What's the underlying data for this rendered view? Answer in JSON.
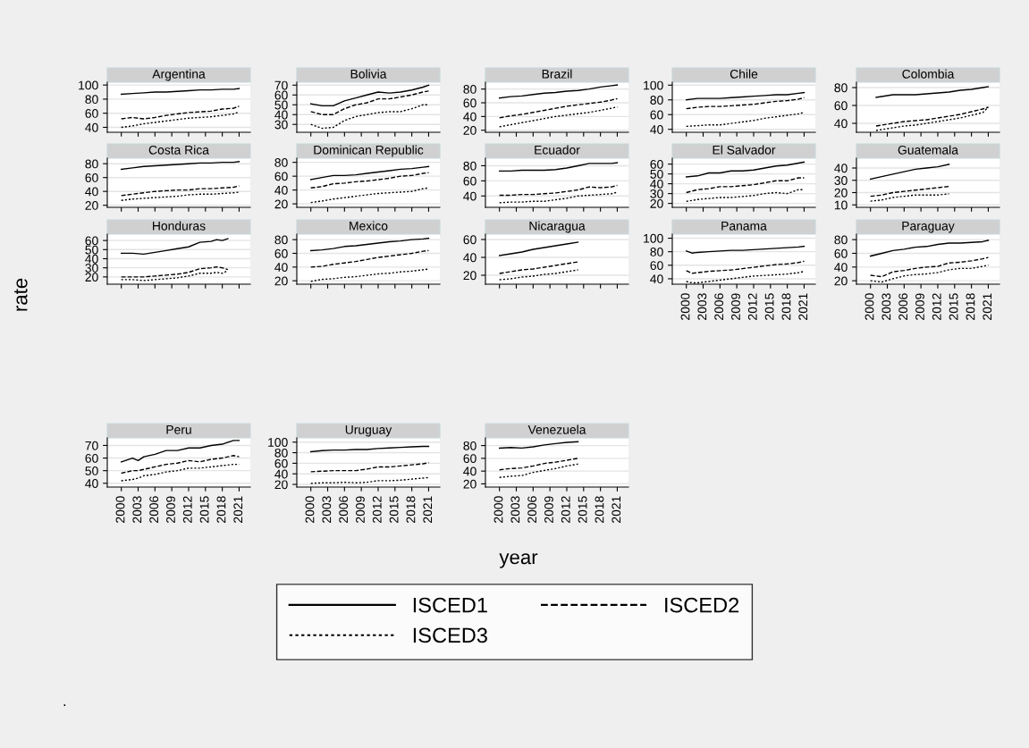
{
  "chart_data": [
    {
      "type": "line",
      "title": "Argentina",
      "grid": "y",
      "tick_labels": "y",
      "xlim": [
        1997.5,
        2023
      ],
      "xticks": [
        2000,
        2003,
        2006,
        2009,
        2012,
        2015,
        2018,
        2021
      ],
      "ylim": [
        33,
        104
      ],
      "yticks": [
        40,
        60,
        80,
        100
      ],
      "x": [
        2000,
        2002,
        2004,
        2006,
        2008,
        2010,
        2012,
        2014,
        2016,
        2018,
        2020,
        2021
      ],
      "series": [
        {
          "color": "#000000",
          "line_style": "solid",
          "values": [
            87,
            88,
            89,
            90,
            90,
            91,
            92,
            93,
            93,
            94,
            94,
            95
          ]
        },
        {
          "color": "#000000",
          "line_style": "dashed",
          "values": [
            52,
            54,
            52,
            54,
            57,
            59,
            61,
            62,
            63,
            66,
            67,
            70
          ]
        },
        {
          "color": "#000000",
          "line_style": "dotted",
          "values": [
            40,
            42,
            45,
            47,
            49,
            51,
            53,
            54,
            55,
            57,
            59,
            62
          ]
        }
      ]
    },
    {
      "type": "line",
      "title": "Bolivia",
      "grid": "y",
      "tick_labels": "y",
      "xlim": [
        1997.5,
        2023
      ],
      "xticks": [
        2000,
        2003,
        2006,
        2009,
        2012,
        2015,
        2018,
        2021
      ],
      "ylim": [
        22,
        73
      ],
      "yticks": [
        30,
        40,
        50,
        60,
        70
      ],
      "x": [
        2000,
        2002,
        2004,
        2006,
        2008,
        2010,
        2012,
        2014,
        2016,
        2018,
        2020,
        2021
      ],
      "series": [
        {
          "color": "#000000",
          "line_style": "solid",
          "values": [
            51,
            49,
            49,
            54,
            57,
            60,
            63,
            62,
            63,
            65,
            68,
            70
          ]
        },
        {
          "color": "#000000",
          "line_style": "dashed",
          "values": [
            43,
            40,
            40,
            46,
            50,
            52,
            56,
            56,
            58,
            60,
            63,
            64
          ]
        },
        {
          "color": "#000000",
          "line_style": "dotted",
          "values": [
            30,
            26,
            27,
            34,
            38,
            40,
            42,
            43,
            43,
            46,
            50,
            50
          ]
        }
      ]
    },
    {
      "type": "line",
      "title": "Brazil",
      "grid": "y",
      "tick_labels": "y",
      "xlim": [
        1997.5,
        2023
      ],
      "xticks": [
        2000,
        2003,
        2006,
        2009,
        2012,
        2015,
        2018,
        2021
      ],
      "ylim": [
        17,
        90
      ],
      "yticks": [
        20,
        40,
        60,
        80
      ],
      "x": [
        2000,
        2002,
        2004,
        2006,
        2008,
        2010,
        2012,
        2014,
        2016,
        2018,
        2020,
        2021
      ],
      "series": [
        {
          "color": "#000000",
          "line_style": "solid",
          "values": [
            67,
            69,
            70,
            72,
            74,
            75,
            77,
            78,
            80,
            83,
            85,
            86
          ]
        },
        {
          "color": "#000000",
          "line_style": "dashed",
          "values": [
            38,
            41,
            43,
            46,
            49,
            52,
            55,
            57,
            59,
            61,
            64,
            66
          ]
        },
        {
          "color": "#000000",
          "line_style": "dotted",
          "values": [
            25,
            28,
            31,
            34,
            37,
            40,
            42,
            44,
            46,
            49,
            52,
            54
          ]
        }
      ]
    },
    {
      "type": "line",
      "title": "Chile",
      "grid": "y",
      "tick_labels": "y",
      "xlim": [
        1997.5,
        2023
      ],
      "xticks": [
        2000,
        2003,
        2006,
        2009,
        2012,
        2015,
        2018,
        2021
      ],
      "ylim": [
        36,
        104
      ],
      "yticks": [
        40,
        60,
        80,
        100
      ],
      "x": [
        2000,
        2002,
        2004,
        2006,
        2008,
        2010,
        2012,
        2014,
        2016,
        2018,
        2020,
        2021
      ],
      "series": [
        {
          "color": "#000000",
          "line_style": "solid",
          "values": [
            80,
            82,
            82,
            82,
            83,
            84,
            85,
            86,
            87,
            87,
            89,
            90
          ]
        },
        {
          "color": "#000000",
          "line_style": "dashed",
          "values": [
            68,
            70,
            71,
            71,
            72,
            73,
            74,
            76,
            78,
            79,
            81,
            83
          ]
        },
        {
          "color": "#000000",
          "line_style": "dotted",
          "values": [
            44,
            45,
            46,
            46,
            48,
            50,
            52,
            55,
            57,
            59,
            61,
            63
          ]
        }
      ]
    },
    {
      "type": "line",
      "title": "Colombia",
      "grid": "y",
      "tick_labels": "y",
      "xlim": [
        1997.5,
        2023
      ],
      "xticks": [
        2000,
        2003,
        2006,
        2009,
        2012,
        2015,
        2018,
        2021
      ],
      "ylim": [
        30,
        86
      ],
      "yticks": [
        40,
        60,
        80
      ],
      "x": [
        2001,
        2002,
        2004,
        2006,
        2008,
        2010,
        2012,
        2014,
        2016,
        2018,
        2020,
        2021
      ],
      "series": [
        {
          "color": "#000000",
          "line_style": "solid",
          "values": [
            69,
            70,
            72,
            72,
            72,
            73,
            74,
            75,
            77,
            78,
            80,
            81
          ]
        },
        {
          "color": "#000000",
          "line_style": "dashed",
          "values": [
            37,
            38,
            40,
            42,
            43,
            44,
            46,
            48,
            50,
            53,
            56,
            58
          ]
        },
        {
          "color": "#000000",
          "line_style": "dotted",
          "values": [
            32,
            33,
            35,
            37,
            38,
            40,
            42,
            44,
            46,
            49,
            52,
            58
          ]
        }
      ]
    },
    {
      "type": "line",
      "title": "Costa Rica",
      "grid": "y",
      "tick_labels": "y",
      "xlim": [
        1997.5,
        2023
      ],
      "xticks": [
        2000,
        2003,
        2006,
        2009,
        2012,
        2015,
        2018,
        2021
      ],
      "ylim": [
        17,
        88
      ],
      "yticks": [
        20,
        40,
        60,
        80
      ],
      "x": [
        2000,
        2002,
        2004,
        2006,
        2008,
        2010,
        2012,
        2014,
        2016,
        2018,
        2020,
        2021
      ],
      "series": [
        {
          "color": "#000000",
          "line_style": "solid",
          "values": [
            72,
            74,
            76,
            77,
            78,
            79,
            80,
            81,
            81,
            82,
            82,
            83
          ]
        },
        {
          "color": "#000000",
          "line_style": "dashed",
          "values": [
            34,
            36,
            38,
            40,
            41,
            42,
            42,
            44,
            44,
            45,
            46,
            48
          ]
        },
        {
          "color": "#000000",
          "line_style": "dotted",
          "values": [
            27,
            29,
            30,
            31,
            32,
            33,
            35,
            36,
            36,
            37,
            38,
            39
          ]
        }
      ]
    },
    {
      "type": "line",
      "title": "Dominican Republic",
      "grid": "y",
      "tick_labels": "y",
      "xlim": [
        1997.5,
        2023
      ],
      "xticks": [
        2000,
        2003,
        2006,
        2009,
        2012,
        2015,
        2018,
        2021
      ],
      "ylim": [
        15,
        86
      ],
      "yticks": [
        20,
        40,
        60,
        80
      ],
      "x": [
        2000,
        2002,
        2004,
        2006,
        2008,
        2010,
        2012,
        2014,
        2016,
        2018,
        2020,
        2021
      ],
      "series": [
        {
          "color": "#000000",
          "line_style": "solid",
          "values": [
            55,
            58,
            61,
            61,
            62,
            64,
            66,
            68,
            70,
            71,
            73,
            74
          ]
        },
        {
          "color": "#000000",
          "line_style": "dashed",
          "values": [
            43,
            45,
            49,
            50,
            52,
            53,
            55,
            57,
            60,
            61,
            64,
            65
          ]
        },
        {
          "color": "#000000",
          "line_style": "dotted",
          "values": [
            22,
            24,
            27,
            29,
            31,
            33,
            35,
            36,
            37,
            38,
            42,
            43
          ]
        }
      ]
    },
    {
      "type": "line",
      "title": "Ecuador",
      "grid": "y",
      "tick_labels": "y",
      "xlim": [
        1997.5,
        2023
      ],
      "xticks": [
        2000,
        2003,
        2006,
        2009,
        2012,
        2015,
        2018,
        2021
      ],
      "ylim": [
        25,
        90
      ],
      "yticks": [
        40,
        60,
        80
      ],
      "x": [
        2000,
        2002,
        2004,
        2006,
        2008,
        2010,
        2012,
        2014,
        2016,
        2018,
        2020,
        2021
      ],
      "series": [
        {
          "color": "#000000",
          "line_style": "solid",
          "values": [
            73,
            73,
            74,
            74,
            74,
            75,
            77,
            80,
            83,
            83,
            83,
            84
          ]
        },
        {
          "color": "#000000",
          "line_style": "dashed",
          "values": [
            41,
            41,
            42,
            42,
            43,
            44,
            46,
            48,
            52,
            51,
            52,
            54
          ]
        },
        {
          "color": "#000000",
          "line_style": "dotted",
          "values": [
            31,
            32,
            32,
            33,
            33,
            35,
            37,
            40,
            41,
            42,
            43,
            45
          ]
        }
      ]
    },
    {
      "type": "line",
      "title": "El Salvador",
      "grid": "y",
      "tick_labels": "y",
      "xlim": [
        1997.5,
        2023
      ],
      "xticks": [
        2000,
        2003,
        2006,
        2009,
        2012,
        2015,
        2018,
        2021
      ],
      "ylim": [
        16,
        66
      ],
      "yticks": [
        20,
        30,
        40,
        50,
        60
      ],
      "x": [
        2000,
        2002,
        2004,
        2006,
        2008,
        2010,
        2012,
        2014,
        2016,
        2018,
        2020,
        2021
      ],
      "series": [
        {
          "color": "#000000",
          "line_style": "solid",
          "values": [
            47,
            48,
            51,
            51,
            53,
            53,
            54,
            56,
            58,
            59,
            61,
            62
          ]
        },
        {
          "color": "#000000",
          "line_style": "dashed",
          "values": [
            31,
            34,
            35,
            37,
            37,
            38,
            39,
            41,
            43,
            43,
            46,
            46
          ]
        },
        {
          "color": "#000000",
          "line_style": "dotted",
          "values": [
            22,
            24,
            25,
            26,
            26,
            27,
            28,
            30,
            31,
            30,
            34,
            34
          ]
        }
      ]
    },
    {
      "type": "line",
      "title": "Guatemala",
      "grid": "y",
      "tick_labels": "y",
      "xlim": [
        1997.5,
        2023
      ],
      "xticks": [
        2000,
        2003,
        2006,
        2009,
        2012,
        2015,
        2018,
        2021
      ],
      "ylim": [
        8,
        48
      ],
      "yticks": [
        10,
        20,
        30,
        40
      ],
      "x": [
        2000,
        2002,
        2004,
        2006,
        2008,
        2010,
        2012,
        2014
      ],
      "series": [
        {
          "color": "#000000",
          "line_style": "solid",
          "values": [
            31,
            33,
            35,
            37,
            39,
            40,
            41,
            43
          ]
        },
        {
          "color": "#000000",
          "line_style": "dashed",
          "values": [
            17,
            18,
            20,
            21,
            22,
            23,
            24,
            25
          ]
        },
        {
          "color": "#000000",
          "line_style": "dotted",
          "values": [
            13,
            14,
            16,
            17,
            18,
            18,
            18,
            19
          ]
        }
      ]
    },
    {
      "type": "line",
      "title": "Honduras",
      "ylabel": "rate",
      "grid": "y",
      "tick_labels": "y",
      "xlim": [
        1997.5,
        2023
      ],
      "xticks": [
        2000,
        2003,
        2006,
        2009,
        2012,
        2015,
        2018,
        2021
      ],
      "ylim": [
        12,
        67
      ],
      "yticks": [
        20,
        30,
        40,
        50,
        60
      ],
      "x": [
        2000,
        2002,
        2004,
        2006,
        2008,
        2010,
        2012,
        2014,
        2016,
        2017,
        2018,
        2019
      ],
      "series": [
        {
          "color": "#000000",
          "line_style": "solid",
          "values": [
            46,
            46,
            45,
            47,
            49,
            51,
            53,
            58,
            59,
            61,
            60,
            62
          ]
        },
        {
          "color": "#000000",
          "line_style": "dashed",
          "values": [
            20,
            20,
            20,
            21,
            22,
            23,
            25,
            29,
            30,
            31,
            30,
            28
          ]
        },
        {
          "color": "#000000",
          "line_style": "dotted",
          "values": [
            17,
            17,
            16,
            17,
            18,
            19,
            21,
            24,
            24,
            25,
            24,
            27
          ]
        }
      ]
    },
    {
      "type": "line",
      "title": "Mexico",
      "grid": "y",
      "tick_labels": "y",
      "xlim": [
        1997.5,
        2023
      ],
      "xticks": [
        2000,
        2003,
        2006,
        2009,
        2012,
        2015,
        2018,
        2021
      ],
      "ylim": [
        15,
        88
      ],
      "yticks": [
        20,
        40,
        60,
        80
      ],
      "x": [
        2000,
        2002,
        2004,
        2006,
        2008,
        2010,
        2012,
        2014,
        2016,
        2018,
        2020,
        2021
      ],
      "series": [
        {
          "color": "#000000",
          "line_style": "solid",
          "values": [
            64,
            65,
            67,
            70,
            71,
            73,
            75,
            77,
            78,
            80,
            81,
            82
          ]
        },
        {
          "color": "#000000",
          "line_style": "dashed",
          "values": [
            40,
            41,
            44,
            46,
            48,
            51,
            54,
            56,
            58,
            60,
            63,
            64
          ]
        },
        {
          "color": "#000000",
          "line_style": "dotted",
          "values": [
            19,
            22,
            23,
            25,
            26,
            28,
            30,
            31,
            33,
            34,
            36,
            37
          ]
        }
      ]
    },
    {
      "type": "line",
      "title": "Nicaragua",
      "grid": "y",
      "tick_labels": "y",
      "xlim": [
        1997.5,
        2023
      ],
      "xticks": [
        2000,
        2003,
        2006,
        2009,
        2012,
        2015,
        2018,
        2021
      ],
      "ylim": [
        10,
        66
      ],
      "yticks": [
        20,
        40,
        60
      ],
      "x": [
        2000,
        2002,
        2004,
        2006,
        2008,
        2010,
        2012,
        2014
      ],
      "series": [
        {
          "color": "#000000",
          "line_style": "solid",
          "values": [
            42,
            44,
            46,
            49,
            51,
            53,
            55,
            57
          ]
        },
        {
          "color": "#000000",
          "line_style": "dashed",
          "values": [
            22,
            24,
            26,
            27,
            29,
            31,
            33,
            35
          ]
        },
        {
          "color": "#000000",
          "line_style": "dotted",
          "values": [
            15,
            16,
            18,
            19,
            21,
            22,
            24,
            26
          ]
        }
      ]
    },
    {
      "type": "line",
      "title": "Panama",
      "grid": "y",
      "xlim": [
        1997.5,
        2023
      ],
      "xticks": [
        2000,
        2003,
        2006,
        2009,
        2012,
        2015,
        2018,
        2021
      ],
      "ylim": [
        32,
        106
      ],
      "yticks": [
        40,
        60,
        80,
        100
      ],
      "x": [
        2000,
        2001,
        2002,
        2004,
        2006,
        2008,
        2010,
        2012,
        2014,
        2016,
        2018,
        2020,
        2021
      ],
      "series": [
        {
          "color": "#000000",
          "line_style": "solid",
          "values": [
            81,
            78,
            79,
            80,
            81,
            82,
            82,
            83,
            84,
            85,
            86,
            87,
            88
          ]
        },
        {
          "color": "#000000",
          "line_style": "dashed",
          "values": [
            52,
            48,
            49,
            51,
            52,
            53,
            55,
            57,
            59,
            61,
            62,
            64,
            66
          ]
        },
        {
          "color": "#000000",
          "line_style": "dotted",
          "values": [
            36,
            34,
            34,
            36,
            38,
            40,
            42,
            44,
            45,
            46,
            47,
            49,
            51
          ]
        }
      ]
    },
    {
      "type": "line",
      "title": "Paraguay",
      "grid": "y",
      "xlim": [
        1997.5,
        2023
      ],
      "xticks": [
        2000,
        2003,
        2006,
        2009,
        2012,
        2015,
        2018,
        2021
      ],
      "ylim": [
        15,
        88
      ],
      "yticks": [
        20,
        40,
        60,
        80
      ],
      "x": [
        2000,
        2002,
        2004,
        2006,
        2008,
        2010,
        2012,
        2014,
        2016,
        2018,
        2020,
        2021
      ],
      "series": [
        {
          "color": "#000000",
          "line_style": "solid",
          "values": [
            56,
            60,
            64,
            66,
            69,
            70,
            73,
            75,
            75,
            76,
            77,
            79
          ]
        },
        {
          "color": "#000000",
          "line_style": "dashed",
          "values": [
            28,
            26,
            33,
            35,
            38,
            40,
            41,
            46,
            47,
            49,
            52,
            54
          ]
        },
        {
          "color": "#000000",
          "line_style": "dotted",
          "values": [
            20,
            18,
            23,
            27,
            29,
            30,
            32,
            36,
            38,
            38,
            41,
            43
          ]
        }
      ]
    },
    {
      "type": "line",
      "title": "Peru",
      "grid": "y",
      "xlim": [
        1997.5,
        2023
      ],
      "xticks": [
        2000,
        2003,
        2006,
        2009,
        2012,
        2015,
        2018,
        2021
      ],
      "ylim": [
        37,
        76
      ],
      "yticks": [
        40,
        50,
        60,
        70
      ],
      "x": [
        2000,
        2002,
        2003,
        2004,
        2006,
        2008,
        2010,
        2012,
        2014,
        2016,
        2018,
        2020,
        2021
      ],
      "series": [
        {
          "color": "#000000",
          "line_style": "solid",
          "values": [
            57,
            60,
            58,
            61,
            63,
            66,
            66,
            68,
            68,
            70,
            71,
            74,
            74
          ]
        },
        {
          "color": "#000000",
          "line_style": "dashed",
          "values": [
            48,
            50,
            50,
            51,
            53,
            55,
            56,
            58,
            57,
            59,
            60,
            62,
            61
          ]
        },
        {
          "color": "#000000",
          "line_style": "dotted",
          "values": [
            42,
            43,
            44,
            46,
            47,
            49,
            50,
            52,
            52,
            53,
            54,
            55,
            55
          ]
        }
      ]
    },
    {
      "type": "line",
      "title": "Uruguay",
      "xlabel": "year",
      "annotations": [
        "."
      ],
      "legend": "bottom",
      "grid": "y",
      "xlim": [
        1997.5,
        2023
      ],
      "xticks": [
        2000,
        2003,
        2006,
        2009,
        2012,
        2015,
        2018,
        2021
      ],
      "ylim": [
        15,
        108
      ],
      "yticks": [
        20,
        40,
        60,
        80,
        100
      ],
      "x": [
        2000,
        2002,
        2004,
        2006,
        2008,
        2010,
        2012,
        2014,
        2016,
        2018,
        2020,
        2021
      ],
      "series": [
        {
          "name": "ISCED1",
          "color": "#000000",
          "line_style": "solid",
          "values": [
            82,
            84,
            85,
            85,
            86,
            86,
            88,
            89,
            90,
            91,
            92,
            92
          ]
        },
        {
          "name": "ISCED2",
          "color": "#000000",
          "line_style": "dashed",
          "values": [
            44,
            45,
            46,
            46,
            46,
            49,
            53,
            53,
            55,
            57,
            59,
            61
          ]
        },
        {
          "name": "ISCED3",
          "color": "#000000",
          "line_style": "dotted",
          "values": [
            22,
            23,
            23,
            24,
            23,
            24,
            27,
            27,
            28,
            30,
            32,
            33
          ]
        }
      ]
    },
    {
      "type": "line",
      "title": "Venezuela",
      "grid": "y",
      "xlim": [
        1997.5,
        2023
      ],
      "xticks": [
        2000,
        2003,
        2006,
        2009,
        2012,
        2015,
        2018,
        2021
      ],
      "ylim": [
        15,
        92
      ],
      "yticks": [
        20,
        40,
        60,
        80
      ],
      "x": [
        2000,
        2002,
        2004,
        2006,
        2008,
        2010,
        2012,
        2014
      ],
      "series": [
        {
          "color": "#000000",
          "line_style": "solid",
          "values": [
            76,
            77,
            76,
            78,
            81,
            83,
            85,
            86
          ]
        },
        {
          "color": "#000000",
          "line_style": "dashed",
          "values": [
            42,
            44,
            45,
            48,
            52,
            54,
            57,
            60
          ]
        },
        {
          "color": "#000000",
          "line_style": "dotted",
          "values": [
            30,
            32,
            33,
            38,
            41,
            44,
            48,
            51
          ]
        }
      ]
    }
  ]
}
